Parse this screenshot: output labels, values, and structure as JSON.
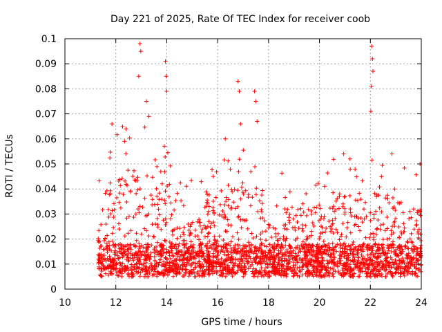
{
  "chart_data": {
    "type": "scatter",
    "title": "Day 221 of 2025, Rate Of TEC Index for receiver coob",
    "xlabel": "GPS time / hours",
    "ylabel": "ROTI / TECUs",
    "xlim": [
      10,
      24
    ],
    "ylim": [
      0,
      0.1
    ],
    "grid": true,
    "marker": "+",
    "series_color": "#ff0000",
    "x_ticks": [
      10,
      12,
      14,
      16,
      18,
      20,
      22,
      24
    ],
    "x_tick_labels": [
      "10",
      "12",
      "14",
      "16",
      "18",
      "20",
      "22",
      "24"
    ],
    "y_ticks": [
      0,
      0.01,
      0.02,
      0.03,
      0.04,
      0.05,
      0.06,
      0.07,
      0.08,
      0.09,
      0.1
    ],
    "y_tick_labels": [
      "0",
      "0.01",
      "0.02",
      "0.03",
      "0.04",
      "0.05",
      "0.06",
      "0.07",
      "0.08",
      "0.09",
      "0.1"
    ],
    "data_x_range": [
      11.3,
      24.0
    ],
    "series": [
      {
        "name": "ROTI",
        "peaks": [
          {
            "x": 12.95,
            "y": 0.098
          },
          {
            "x": 12.98,
            "y": 0.095
          },
          {
            "x": 12.9,
            "y": 0.085
          },
          {
            "x": 13.95,
            "y": 0.091
          },
          {
            "x": 13.98,
            "y": 0.085
          },
          {
            "x": 14.0,
            "y": 0.079
          },
          {
            "x": 22.05,
            "y": 0.097
          },
          {
            "x": 22.08,
            "y": 0.092
          },
          {
            "x": 22.1,
            "y": 0.087
          },
          {
            "x": 22.04,
            "y": 0.081
          },
          {
            "x": 22.02,
            "y": 0.071
          },
          {
            "x": 16.8,
            "y": 0.083
          },
          {
            "x": 16.85,
            "y": 0.079
          },
          {
            "x": 17.45,
            "y": 0.079
          },
          {
            "x": 17.5,
            "y": 0.075
          },
          {
            "x": 17.55,
            "y": 0.067
          },
          {
            "x": 11.85,
            "y": 0.066
          },
          {
            "x": 12.4,
            "y": 0.064
          },
          {
            "x": 13.2,
            "y": 0.075
          },
          {
            "x": 13.3,
            "y": 0.069
          },
          {
            "x": 20.95,
            "y": 0.054
          },
          {
            "x": 21.2,
            "y": 0.052
          },
          {
            "x": 22.85,
            "y": 0.054
          },
          {
            "x": 23.95,
            "y": 0.05
          },
          {
            "x": 16.3,
            "y": 0.06
          },
          {
            "x": 16.9,
            "y": 0.066
          }
        ]
      }
    ]
  }
}
